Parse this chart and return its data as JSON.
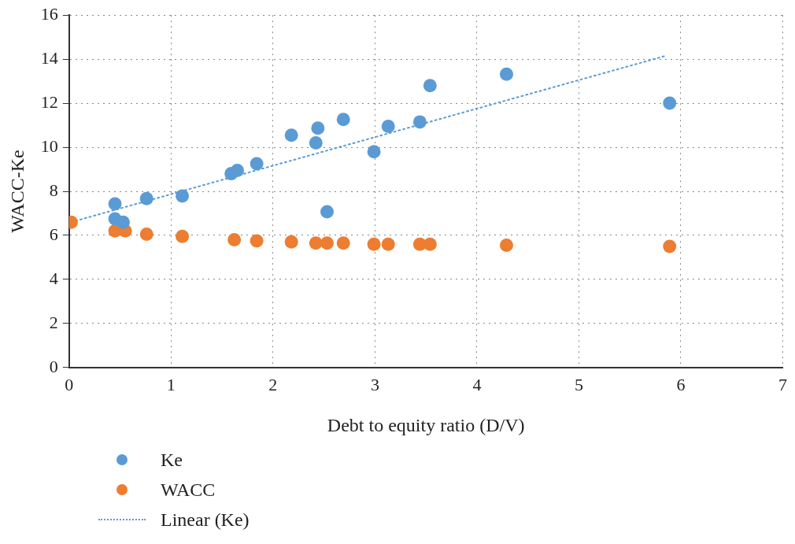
{
  "chart_data": {
    "type": "scatter",
    "xlabel": "Debt to equity ratio (D/V)",
    "ylabel": "WACC-Ke",
    "xlim": [
      0,
      7
    ],
    "xticks": [
      0,
      1,
      2,
      3,
      4,
      5,
      6,
      7
    ],
    "ylim": [
      0,
      16
    ],
    "yticks": [
      0,
      2,
      4,
      6,
      8,
      10,
      12,
      14,
      16
    ],
    "grid": true,
    "legend": "bottom left",
    "marker": "circle",
    "series": [
      {
        "name": "Ke",
        "color": "#5b9bd5",
        "x": [
          0.45,
          0.45,
          0.53,
          0.76,
          1.11,
          1.59,
          1.65,
          1.84,
          2.18,
          2.42,
          2.44,
          2.69,
          2.53,
          2.99,
          3.13,
          3.44,
          3.54,
          4.29,
          5.89
        ],
        "values": [
          7.43,
          6.75,
          6.6,
          7.67,
          7.79,
          8.8,
          8.95,
          9.25,
          10.55,
          10.2,
          10.87,
          11.26,
          7.07,
          9.8,
          10.95,
          11.15,
          12.8,
          13.32,
          12.0
        ]
      },
      {
        "name": "WACC",
        "color": "#ed7d31",
        "x": [
          0.02,
          0.45,
          0.55,
          0.76,
          1.11,
          1.62,
          1.84,
          2.18,
          2.42,
          2.53,
          2.69,
          2.99,
          3.13,
          3.44,
          3.54,
          4.29,
          5.89
        ],
        "values": [
          6.6,
          6.2,
          6.2,
          6.05,
          5.95,
          5.8,
          5.75,
          5.7,
          5.65,
          5.65,
          5.65,
          5.6,
          5.6,
          5.6,
          5.6,
          5.55,
          5.5
        ]
      },
      {
        "name": "Linear (Ke)",
        "type": "line",
        "line_style": "dotted",
        "marker": "none",
        "color": "#5b9bd5",
        "x": [
          0.02,
          5.85
        ],
        "values": [
          6.6,
          14.15
        ]
      }
    ]
  }
}
